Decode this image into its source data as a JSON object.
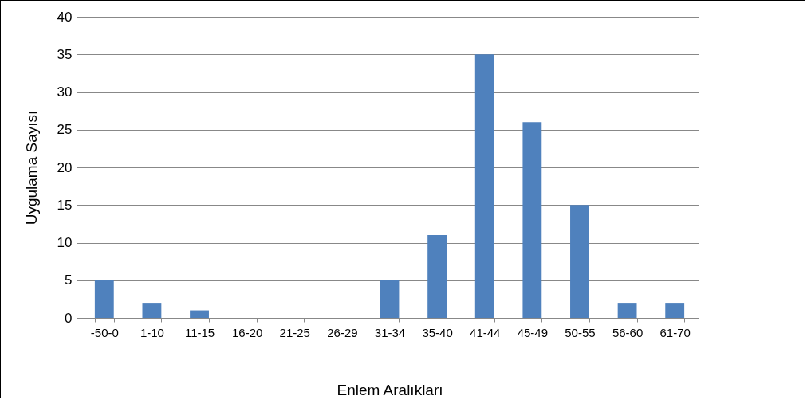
{
  "chart_data": {
    "type": "bar",
    "xlabel": "Enlem Aralıkları",
    "ylabel": "Uygulama Sayısı",
    "categories": [
      "-50-0",
      "1-10",
      "11-15",
      "16-20",
      "21-25",
      "26-29",
      "31-34",
      "35-40",
      "41-44",
      "45-49",
      "50-55",
      "56-60",
      "61-70"
    ],
    "values": [
      5,
      2,
      1,
      0,
      0,
      0,
      5,
      11,
      35,
      26,
      15,
      2,
      2
    ],
    "color": "#4f81bd",
    "ylim": [
      0,
      40
    ],
    "yticks": [
      0,
      5,
      10,
      15,
      20,
      25,
      30,
      35,
      40
    ],
    "grid": "y"
  }
}
